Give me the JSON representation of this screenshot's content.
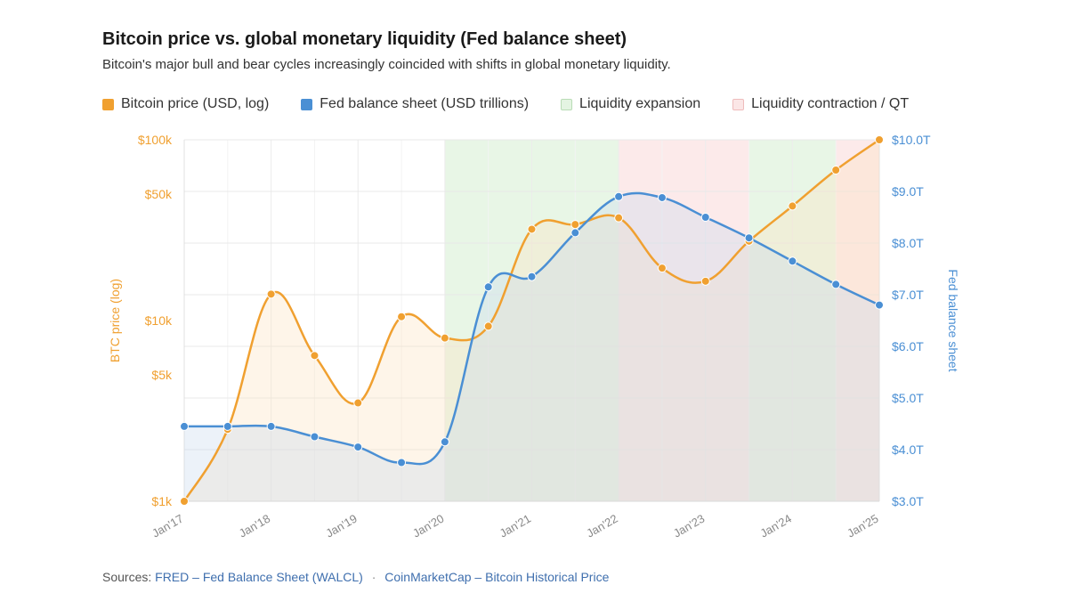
{
  "title": "Bitcoin price vs. global monetary liquidity (Fed balance sheet)",
  "subtitle": "Bitcoin's major bull and bear cycles increasingly coincided with shifts in global monetary liquidity.",
  "legend": [
    {
      "label": "Bitcoin price (USD, log)",
      "color": "#f0a030",
      "fill": "#f0a030",
      "border": "#f0a030"
    },
    {
      "label": "Fed balance sheet (USD trillions)",
      "color": "#4a8fd4",
      "fill": "#4a8fd4",
      "border": "#4a8fd4"
    },
    {
      "label": "Liquidity expansion",
      "color": "#cfe9cf",
      "fill": "#e4f4e2",
      "border": "#b9dcb6"
    },
    {
      "label": "Liquidity contraction / QT",
      "color": "#f6d6d6",
      "fill": "#fbe6e6",
      "border": "#eebcbc"
    }
  ],
  "sources": {
    "prefix": "Sources:",
    "link1": "FRED – Fed Balance Sheet (WALCL)",
    "separator": "·",
    "link2": "CoinMarketCap – Bitcoin Historical Price"
  },
  "chart_data": {
    "type": "line",
    "x": [
      2017.0,
      2017.5,
      2018.0,
      2018.5,
      2019.0,
      2019.5,
      2020.0,
      2020.5,
      2021.0,
      2021.5,
      2022.0,
      2022.5,
      2023.0,
      2023.5,
      2024.0,
      2024.5,
      2025.0
    ],
    "x_ticks": [
      {
        "value": 2017,
        "label": "Jan'17"
      },
      {
        "value": 2018,
        "label": "Jan'18"
      },
      {
        "value": 2019,
        "label": "Jan'19"
      },
      {
        "value": 2020,
        "label": "Jan'20"
      },
      {
        "value": 2021,
        "label": "Jan'21"
      },
      {
        "value": 2022,
        "label": "Jan'22"
      },
      {
        "value": 2023,
        "label": "Jan'23"
      },
      {
        "value": 2024,
        "label": "Jan'24"
      },
      {
        "value": 2025,
        "label": "Jan'25"
      }
    ],
    "series": [
      {
        "name": "Bitcoin price (USD, log)",
        "axis": "left",
        "color": "#f0a030",
        "values": [
          1000,
          2500,
          14000,
          6400,
          3500,
          10500,
          8000,
          9300,
          32000,
          34000,
          37000,
          19500,
          16500,
          27500,
          43000,
          68000,
          100000
        ]
      },
      {
        "name": "Fed balance sheet (USD trillions)",
        "axis": "right",
        "color": "#4a8fd4",
        "values": [
          4.45,
          4.45,
          4.45,
          4.25,
          4.05,
          3.75,
          4.15,
          7.15,
          7.35,
          8.2,
          8.9,
          8.88,
          8.5,
          8.1,
          7.65,
          7.2,
          6.8
        ]
      }
    ],
    "shaded_regions": [
      {
        "from": 2020.0,
        "to": 2022.0,
        "kind": "expansion"
      },
      {
        "from": 2022.0,
        "to": 2023.5,
        "kind": "contraction"
      },
      {
        "from": 2023.5,
        "to": 2024.5,
        "kind": "expansion"
      },
      {
        "from": 2024.5,
        "to": 2025.0,
        "kind": "contraction"
      }
    ],
    "y_left": {
      "label": "BTC price (log)",
      "scale": "log",
      "range": [
        1000,
        100000
      ],
      "ticks": [
        {
          "value": 1000,
          "label": "$1k"
        },
        {
          "value": 5000,
          "label": "$5k"
        },
        {
          "value": 10000,
          "label": "$10k"
        },
        {
          "value": 50000,
          "label": "$50k"
        },
        {
          "value": 100000,
          "label": "$100k"
        }
      ]
    },
    "y_right": {
      "label": "Fed balance sheet",
      "scale": "linear",
      "range": [
        3.0,
        10.0
      ],
      "ticks": [
        {
          "value": 3,
          "label": "$3.0T"
        },
        {
          "value": 4,
          "label": "$4.0T"
        },
        {
          "value": 5,
          "label": "$5.0T"
        },
        {
          "value": 6,
          "label": "$6.0T"
        },
        {
          "value": 7,
          "label": "$7.0T"
        },
        {
          "value": 8,
          "label": "$8.0T"
        },
        {
          "value": 9,
          "label": "$9.0T"
        },
        {
          "value": 10,
          "label": "$10.0T"
        }
      ]
    },
    "grid": true,
    "legend_position": "top-left"
  }
}
